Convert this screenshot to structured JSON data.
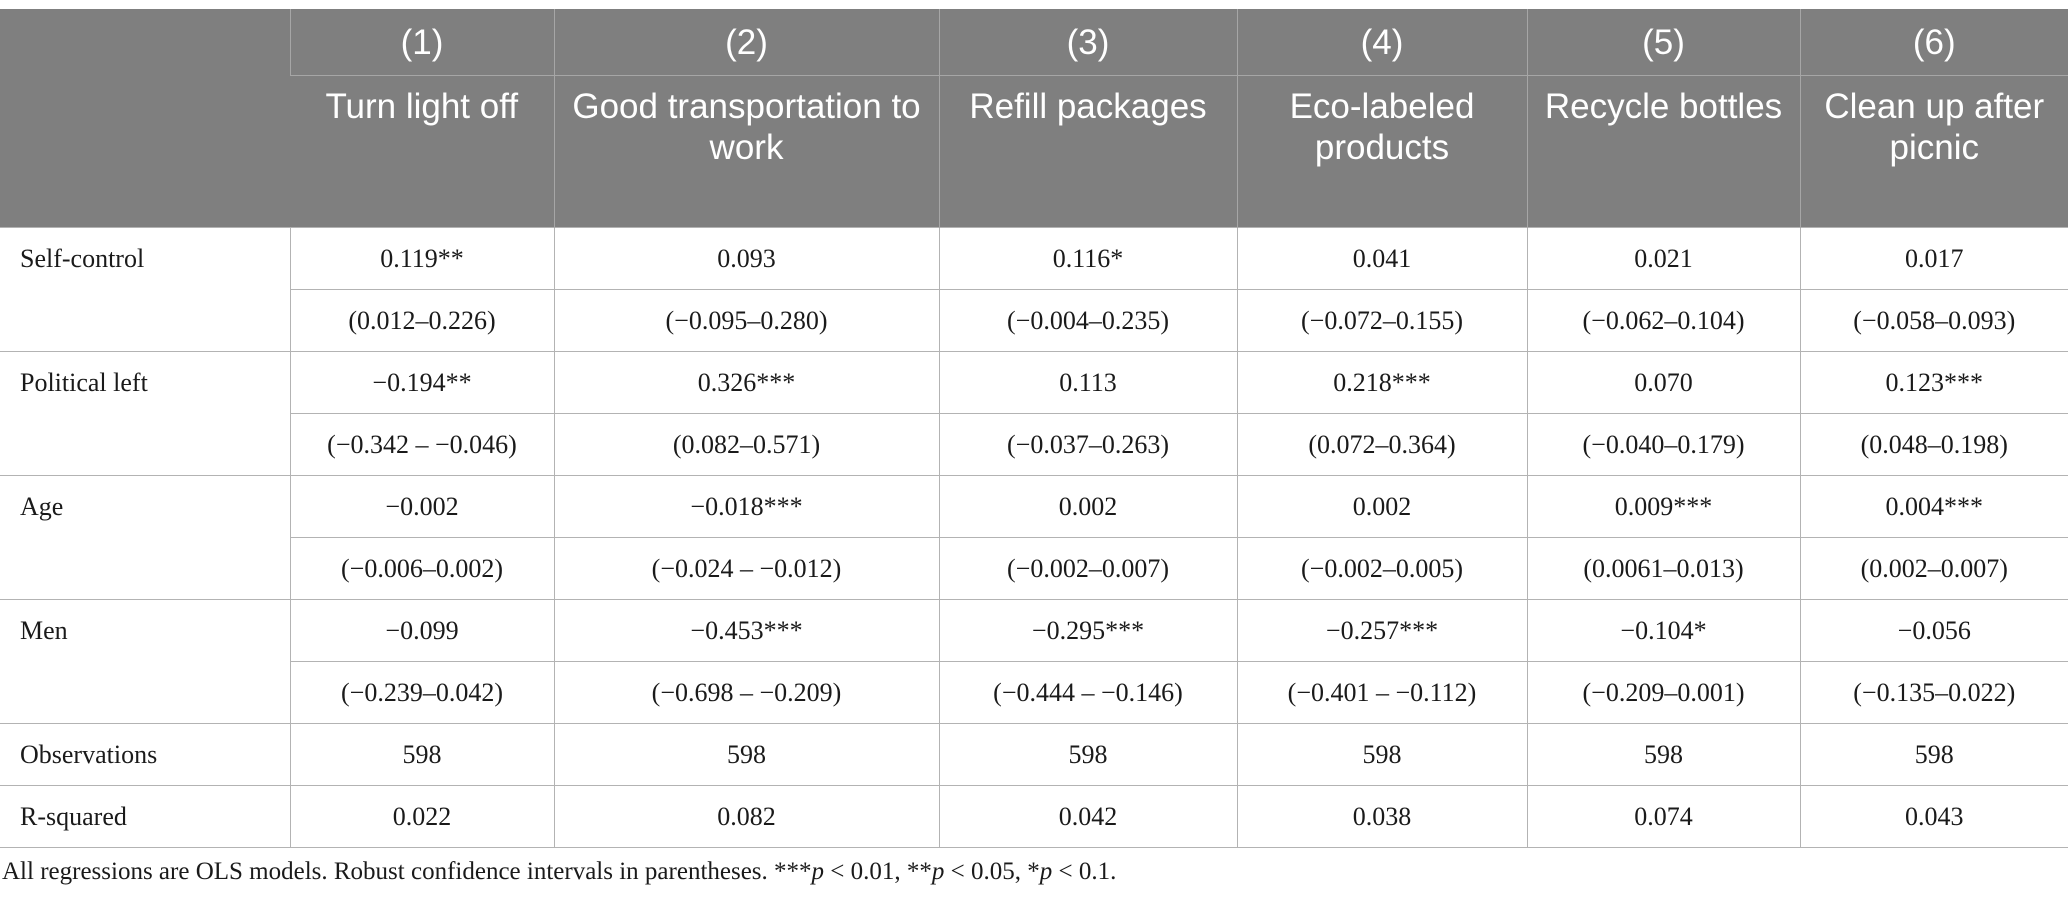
{
  "columns": [
    {
      "num": "(1)",
      "name": "Turn light off"
    },
    {
      "num": "(2)",
      "name": "Good transportation to work"
    },
    {
      "num": "(3)",
      "name": "Refill packages"
    },
    {
      "num": "(4)",
      "name": "Eco-labeled products"
    },
    {
      "num": "(5)",
      "name": "Recycle bottles"
    },
    {
      "num": "(6)",
      "name": "Clean up after picnic"
    }
  ],
  "variables": [
    {
      "label": "Self-control",
      "coef": [
        "0.119**",
        "0.093",
        "0.116*",
        "0.041",
        "0.021",
        "0.017"
      ],
      "ci": [
        "(0.012–0.226)",
        "(−0.095–0.280)",
        "(−0.004–0.235)",
        "(−0.072–0.155)",
        "(−0.062–0.104)",
        "(−0.058–0.093)"
      ]
    },
    {
      "label": "Political left",
      "coef": [
        "−0.194**",
        "0.326***",
        "0.113",
        "0.218***",
        "0.070",
        "0.123***"
      ],
      "ci": [
        "(−0.342 – −0.046)",
        "(0.082–0.571)",
        "(−0.037–0.263)",
        "(0.072–0.364)",
        "(−0.040–0.179)",
        "(0.048–0.198)"
      ]
    },
    {
      "label": "Age",
      "coef": [
        "−0.002",
        "−0.018***",
        "0.002",
        "0.002",
        "0.009***",
        "0.004***"
      ],
      "ci": [
        "(−0.006–0.002)",
        "(−0.024 – −0.012)",
        "(−0.002–0.007)",
        "(−0.002–0.005)",
        "(0.0061–0.013)",
        "(0.002–0.007)"
      ]
    },
    {
      "label": "Men",
      "coef": [
        "−0.099",
        "−0.453***",
        "−0.295***",
        "−0.257***",
        "−0.104*",
        "−0.056"
      ],
      "ci": [
        "(−0.239–0.042)",
        "(−0.698 – −0.209)",
        "(−0.444 – −0.146)",
        "(−0.401 – −0.112)",
        "(−0.209–0.001)",
        "(−0.135–0.022)"
      ]
    }
  ],
  "summary": [
    {
      "label": "Observations",
      "values": [
        "598",
        "598",
        "598",
        "598",
        "598",
        "598"
      ]
    },
    {
      "label": "R-squared",
      "values": [
        "0.022",
        "0.082",
        "0.042",
        "0.038",
        "0.074",
        "0.043"
      ]
    }
  ],
  "footnote": {
    "text1": "All regressions are OLS models. Robust confidence intervals in parentheses. ***",
    "p": "p",
    "text2": " < 0.01, **",
    "text3": " < 0.05, *",
    "text4": " < 0.1."
  },
  "colors": {
    "header_bg": "#7f7f7f",
    "header_text": "#ffffff",
    "grid": "#b3b3b3"
  }
}
